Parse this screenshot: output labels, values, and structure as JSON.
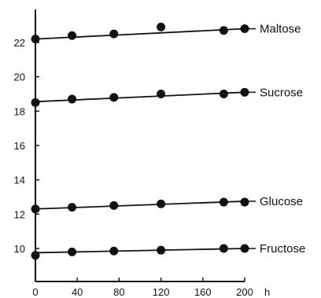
{
  "chart_data": {
    "type": "scatter",
    "xlabel": "h",
    "ylabel": "",
    "title": "",
    "xlim": [
      0,
      200
    ],
    "ylim": [
      9,
      23.6
    ],
    "xticks": [
      0,
      40,
      80,
      120,
      160,
      200
    ],
    "yticks": [
      10,
      12,
      14,
      16,
      18,
      20,
      22
    ],
    "grid": false,
    "series": [
      {
        "name": "Maltose",
        "x": [
          0,
          35,
          75,
          120,
          180,
          200
        ],
        "y": [
          22.2,
          22.4,
          22.5,
          22.9,
          22.7,
          22.8
        ],
        "fit": [
          [
            0,
            22.2
          ],
          [
            200,
            22.8
          ]
        ]
      },
      {
        "name": "Sucrose",
        "x": [
          0,
          35,
          75,
          120,
          180,
          200
        ],
        "y": [
          18.5,
          18.7,
          18.8,
          19.0,
          19.0,
          19.1
        ],
        "fit": [
          [
            0,
            18.55
          ],
          [
            200,
            19.1
          ]
        ]
      },
      {
        "name": "Glucose",
        "x": [
          0,
          35,
          75,
          120,
          180,
          200
        ],
        "y": [
          12.3,
          12.4,
          12.5,
          12.6,
          12.7,
          12.7
        ],
        "fit": [
          [
            0,
            12.3
          ],
          [
            200,
            12.75
          ]
        ]
      },
      {
        "name": "Fructose",
        "x": [
          0,
          35,
          75,
          120,
          180,
          200
        ],
        "y": [
          9.6,
          9.8,
          9.85,
          9.9,
          10.0,
          10.0
        ],
        "fit": [
          [
            0,
            9.75
          ],
          [
            200,
            10.0
          ]
        ]
      }
    ]
  }
}
